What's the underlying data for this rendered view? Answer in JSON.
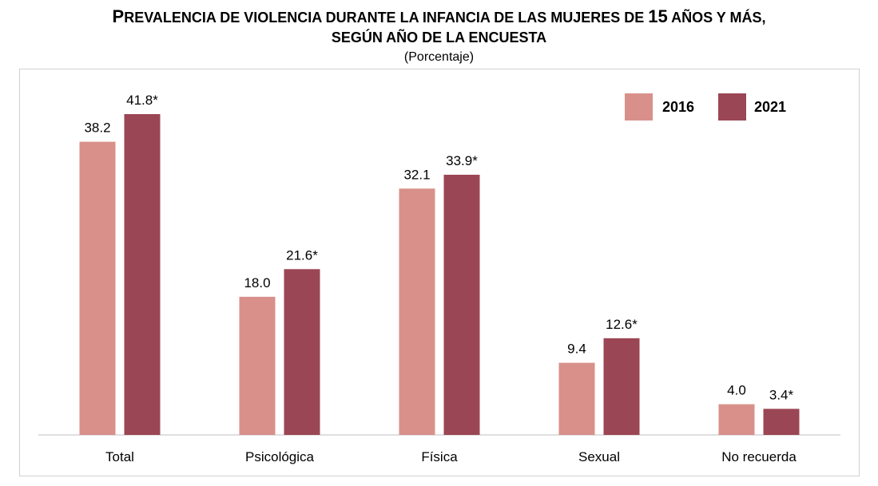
{
  "title_line1_first": "P",
  "title_line1_rest_a": "REVALENCIA DE VIOLENCIA DURANTE LA INFANCIA DE LAS MUJERES DE ",
  "title_line1_num": "15",
  "title_line1_rest_b": " AÑOS Y MÁS,",
  "title_line2": "SEGÚN AÑO DE LA ENCUESTA",
  "subtitle": "(Porcentaje)",
  "chart_data": {
    "type": "bar",
    "title": "PREVALENCIA DE VIOLENCIA DURANTE LA INFANCIA DE LAS MUJERES DE 15 AÑOS Y MÁS, SEGÚN AÑO DE LA ENCUESTA",
    "subtitle": "(Porcentaje)",
    "categories": [
      "Total",
      "Psicológica",
      "Física",
      "Sexual",
      "No recuerda"
    ],
    "series": [
      {
        "name": "2016",
        "color": "#d9908a",
        "values": [
          38.2,
          18.0,
          32.1,
          9.4,
          4.0
        ],
        "labels": [
          "38.2",
          "18.0",
          "32.1",
          "9.4",
          "4.0"
        ]
      },
      {
        "name": "2021",
        "color": "#9b4654",
        "values": [
          41.8,
          21.6,
          33.9,
          12.6,
          3.4
        ],
        "labels": [
          "41.8*",
          "21.6*",
          "33.9*",
          "12.6*",
          "3.4*"
        ]
      }
    ],
    "ylim": [
      0,
      45
    ],
    "grid": false,
    "legend_position": "top-right"
  }
}
